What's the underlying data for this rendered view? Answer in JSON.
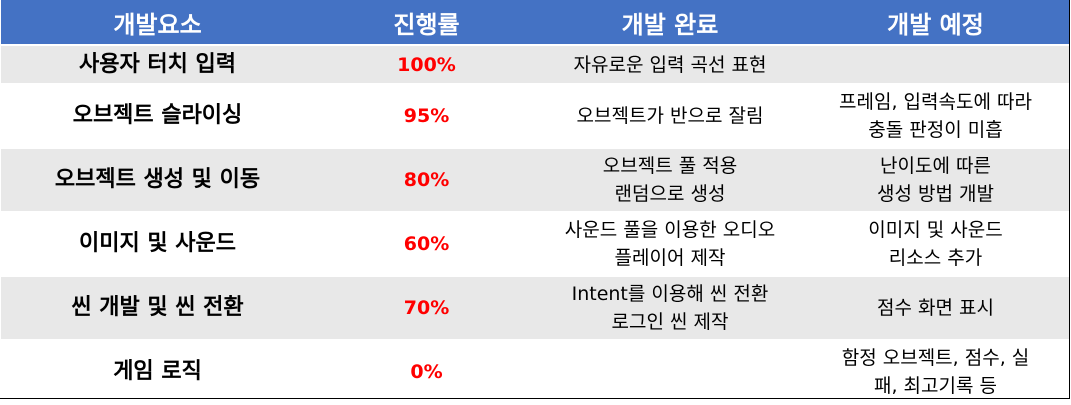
{
  "headers": {
    "element": "개발요소",
    "progress": "진행률",
    "done": "개발 완료",
    "planned": "개발 예정"
  },
  "colors": {
    "header_bg": "#4472c4",
    "header_text": "#ffffff",
    "row_shade": "#e8e8e8",
    "progress_text": "#ff0000"
  },
  "rows": [
    {
      "element": "사용자 터치 입력",
      "progress": "100%",
      "done": [
        "자유로운 입력 곡선 표현"
      ],
      "planned": []
    },
    {
      "element": "오브젝트 슬라이싱",
      "progress": "95%",
      "done": [
        "오브젝트가 반으로 잘림"
      ],
      "planned": [
        "프레임, 입력속도에 따라",
        "충돌 판정이 미흡"
      ]
    },
    {
      "element": "오브젝트 생성 및 이동",
      "progress": "80%",
      "done": [
        "오브젝트 풀 적용",
        "랜덤으로 생성"
      ],
      "planned": [
        "난이도에 따른",
        "생성 방법 개발"
      ]
    },
    {
      "element": "이미지 및 사운드",
      "progress": "60%",
      "done": [
        "사운드 풀을 이용한 오디오",
        "플레이어 제작"
      ],
      "planned": [
        "이미지 및 사운드",
        "리소스 추가"
      ]
    },
    {
      "element": "씬 개발 및 씬 전환",
      "progress": "70%",
      "done": [
        "Intent를 이용해 씬 전환",
        "로그인 씬 제작"
      ],
      "planned": [
        "점수 화면 표시"
      ]
    },
    {
      "element": "게임 로직",
      "progress": "0%",
      "done": [],
      "planned": [
        "함정 오브젝트, 점수, 실",
        "패, 최고기록 등"
      ]
    }
  ]
}
